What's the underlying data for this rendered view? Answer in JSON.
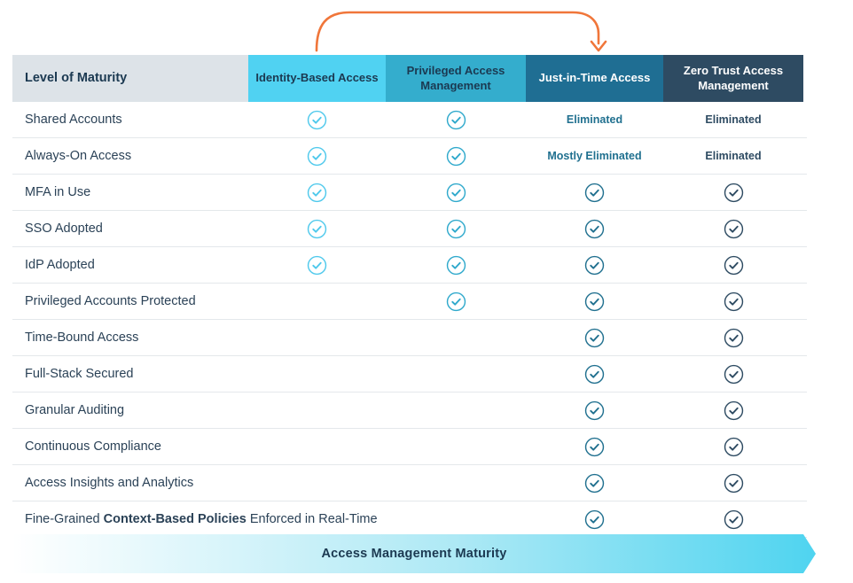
{
  "arrow": {
    "color": "#f0763a",
    "from": "Identity-Based Access",
    "to": "Just-in-Time Access"
  },
  "table": {
    "columns": [
      {
        "id": "level-of-maturity",
        "label": "Level of Maturity",
        "bg": "#dde3e8",
        "text": "#1b3951",
        "accent": "#2b4257"
      },
      {
        "id": "identity-based-access",
        "label": "Identity-Based Access",
        "bg": "#50d2f2",
        "text": "#1b3951",
        "accent": "#4fc9ec"
      },
      {
        "id": "privileged-access-management",
        "label": "Privileged Access Management",
        "bg": "#34adcd",
        "text": "#1b3951",
        "accent": "#2fa9cc"
      },
      {
        "id": "just-in-time-access",
        "label": "Just-in-Time Access",
        "bg": "#1f6e93",
        "text": "#ffffff",
        "accent": "#20708f"
      },
      {
        "id": "zero-trust-access-management",
        "label": "Zero Trust Access Management",
        "bg": "#2e4b62",
        "text": "#ffffff",
        "accent": "#2e4b62"
      }
    ],
    "rows": [
      {
        "label": "Shared Accounts",
        "cells": [
          "check",
          "check",
          "Eliminated",
          "Eliminated"
        ]
      },
      {
        "label": "Always-On Access",
        "cells": [
          "check",
          "check",
          "Mostly Eliminated",
          "Eliminated"
        ]
      },
      {
        "label": "MFA in Use",
        "cells": [
          "check",
          "check",
          "check",
          "check"
        ]
      },
      {
        "label": "SSO Adopted",
        "cells": [
          "check",
          "check",
          "check",
          "check"
        ]
      },
      {
        "label": "IdP Adopted",
        "cells": [
          "check",
          "check",
          "check",
          "check"
        ]
      },
      {
        "label": "Privileged Accounts Protected",
        "cells": [
          "",
          "check",
          "check",
          "check"
        ]
      },
      {
        "label": "Time-Bound Access",
        "cells": [
          "",
          "",
          "check",
          "check"
        ]
      },
      {
        "label": "Full-Stack Secured",
        "cells": [
          "",
          "",
          "check",
          "check"
        ]
      },
      {
        "label": "Granular Auditing",
        "cells": [
          "",
          "",
          "check",
          "check"
        ]
      },
      {
        "label": "Continuous Compliance",
        "cells": [
          "",
          "",
          "check",
          "check"
        ]
      },
      {
        "label": "Access Insights and Analytics",
        "cells": [
          "",
          "",
          "check",
          "check"
        ]
      },
      {
        "label": "Fine-Grained Context-Based Policies Enforced in Real-Time",
        "label_parts": [
          {
            "text": "Fine-Grained ",
            "bold": false
          },
          {
            "text": "Context-Based Policies",
            "bold": true
          },
          {
            "text": " Enforced in Real-Time",
            "bold": false
          }
        ],
        "cells": [
          "",
          "",
          "check",
          "check"
        ]
      }
    ]
  },
  "banner": {
    "label": "Access Management Maturity",
    "gradient_start": "#ffffff",
    "gradient_end": "#4fd4f0",
    "text_color": "#1b3951"
  }
}
